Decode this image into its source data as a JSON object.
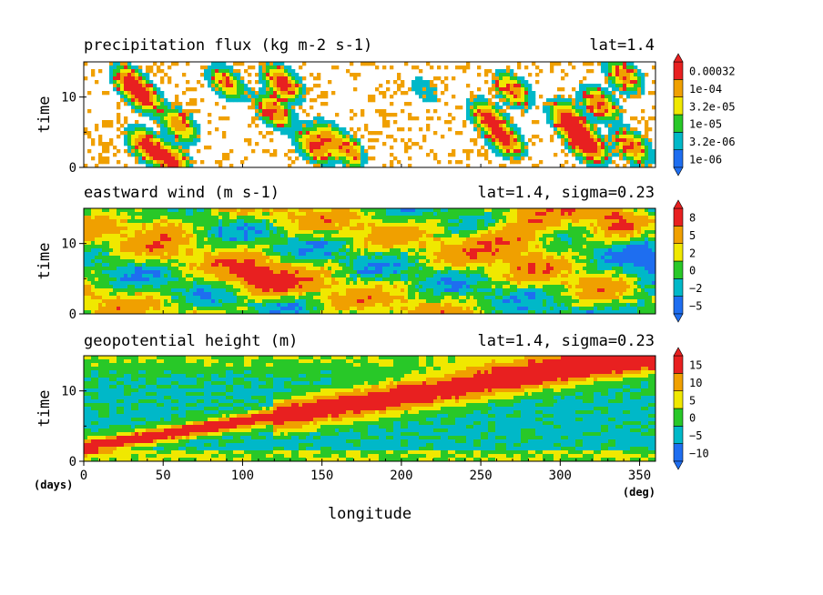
{
  "colors": {
    "background": "#ffffff",
    "axis": "#000000",
    "shade_classes": [
      "#1e6ef0",
      "#00b8c8",
      "#28c828",
      "#f0e800",
      "#f0a000",
      "#e82020"
    ]
  },
  "chart_data": [
    {
      "type": "heatmap",
      "title": "precipitation flux (kg m-2 s-1)",
      "subtitle": "lat=1.4",
      "ylabel": "time",
      "ylim": [
        0,
        15
      ],
      "yticks": [
        "0",
        "10"
      ],
      "colorbar_labels": [
        "0.00032",
        "1e-04",
        "3.2e-05",
        "1e-05",
        "3.2e-06",
        "1e-06"
      ],
      "field": "precipitation",
      "empty_below_threshold": true
    },
    {
      "type": "heatmap",
      "title": "eastward wind (m s-1)",
      "subtitle": "lat=1.4, sigma=0.23",
      "ylabel": "time",
      "ylim": [
        0,
        15
      ],
      "yticks": [
        "0",
        "10"
      ],
      "colorbar_labels": [
        "8",
        "5",
        "2",
        "0",
        "−2",
        "−5"
      ],
      "field": "wind",
      "empty_below_threshold": false
    },
    {
      "type": "heatmap",
      "title": "geopotential height (m)",
      "subtitle": "lat=1.4, sigma=0.23",
      "ylabel": "time",
      "ylim": [
        0,
        15
      ],
      "yticks": [
        "0",
        "10"
      ],
      "colorbar_labels": [
        "15",
        "10",
        "5",
        "0",
        "−5",
        "−10"
      ],
      "field": "height",
      "empty_below_threshold": false
    }
  ],
  "shared_x": {
    "xlabel": "longitude",
    "xlim": [
      0,
      360
    ],
    "xticks": [
      "0",
      "50",
      "100",
      "150",
      "200",
      "250",
      "300",
      "350"
    ],
    "x_unit": "(deg)",
    "y_unit": "(days)"
  }
}
